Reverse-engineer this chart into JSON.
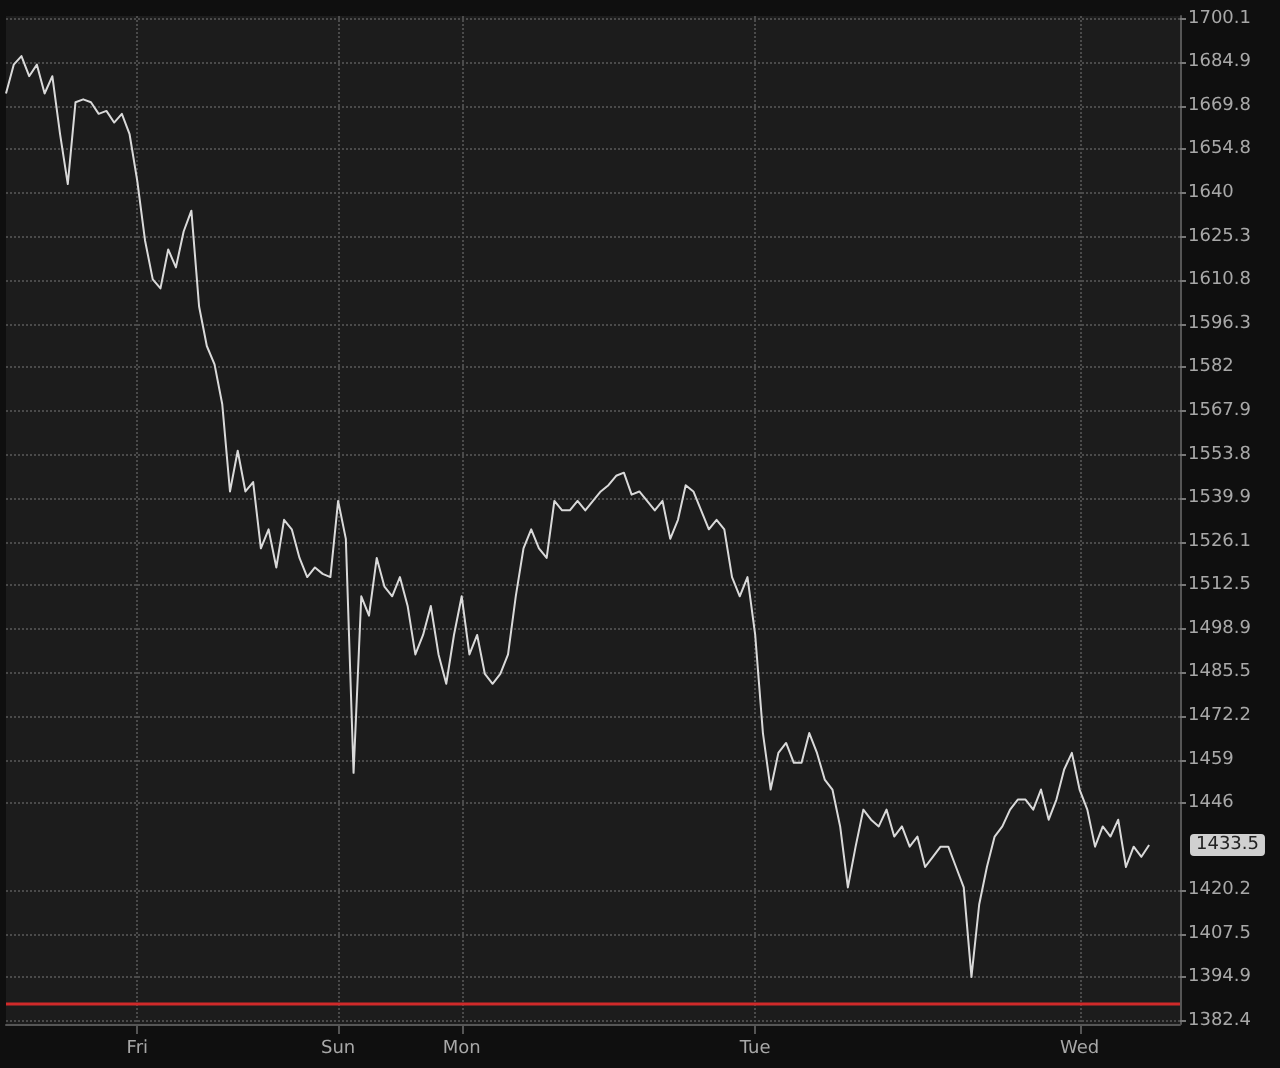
{
  "chart_data": {
    "type": "line",
    "log": true,
    "grid": true,
    "categories": [
      null,
      null,
      null,
      null,
      null,
      null,
      null,
      null,
      null,
      null,
      null,
      null,
      null,
      null,
      null,
      null,
      null,
      "Fri",
      null,
      null,
      null,
      null,
      null,
      null,
      null,
      null,
      null,
      null,
      null,
      null,
      null,
      null,
      null,
      null,
      null,
      null,
      null,
      null,
      null,
      null,
      null,
      null,
      null,
      "Sun",
      null,
      null,
      null,
      null,
      null,
      null,
      null,
      null,
      null,
      null,
      null,
      null,
      null,
      null,
      null,
      "Mon",
      null,
      null,
      null,
      null,
      null,
      null,
      null,
      null,
      null,
      null,
      null,
      null,
      null,
      null,
      null,
      null,
      null,
      null,
      null,
      null,
      null,
      null,
      null,
      null,
      null,
      null,
      null,
      null,
      null,
      null,
      null,
      null,
      null,
      null,
      null,
      null,
      null,
      "Tue",
      null,
      null,
      null,
      null,
      null,
      null,
      null,
      null,
      null,
      null,
      null,
      null,
      null,
      null,
      null,
      null,
      null,
      null,
      null,
      null,
      null,
      null,
      null,
      null,
      null,
      null,
      null,
      null,
      null,
      null,
      null,
      null,
      null,
      null,
      null,
      null,
      null,
      null,
      null,
      null,
      null,
      "Wed",
      null,
      null,
      null,
      null,
      null,
      null,
      null,
      null,
      null,
      null,
      null,
      null,
      null
    ],
    "series": [
      {
        "color": "#d9d9d9",
        "values": [
          1674,
          1684,
          1687,
          1680,
          1684,
          1674,
          1680,
          1660,
          1643,
          1671,
          1672,
          1671,
          1667,
          1668,
          1664,
          1667,
          1660,
          1644,
          1624,
          1611,
          1608,
          1621,
          1615,
          1627,
          1634,
          1602,
          1589,
          1583,
          1570,
          1542,
          1555,
          1542,
          1545,
          1524,
          1530,
          1518,
          1533,
          1530,
          1521,
          1515,
          1518,
          1516,
          1515,
          1539,
          1527,
          1455,
          1509,
          1503,
          1521,
          1512,
          1509,
          1515,
          1506,
          1491,
          1497,
          1506,
          1491,
          1482,
          1497,
          1509,
          1491,
          1497,
          1485,
          1482,
          1485,
          1491,
          1509,
          1524,
          1530,
          1524,
          1521,
          1539,
          1536,
          1536,
          1539,
          1536,
          1539,
          1542,
          1544,
          1547,
          1548,
          1541,
          1542,
          1539,
          1536,
          1539,
          1527,
          1533,
          1544,
          1542,
          1536,
          1530,
          1533,
          1530,
          1515,
          1509,
          1515,
          1497,
          1467,
          1450,
          1461,
          1464,
          1458,
          1458,
          1467,
          1461,
          1453,
          1450,
          1439,
          1421,
          1433,
          1444,
          1441,
          1439,
          1444,
          1436,
          1439,
          1433,
          1436,
          1427,
          1430,
          1433,
          1433,
          1427,
          1421,
          1395,
          1416,
          1427,
          1436,
          1439,
          1444,
          1447,
          1447,
          1444,
          1450,
          1441,
          1447,
          1456,
          1461,
          1450,
          1444,
          1433,
          1439,
          1436,
          1441,
          1427,
          1433,
          1430,
          1433.5,
          null,
          null,
          null,
          null
        ]
      }
    ],
    "ylim": [
      1381.5,
      1701
    ],
    "yticks": [
      1382.4,
      1394.9,
      1407.5,
      1420.2,
      1446,
      1459,
      1472.2,
      1485.5,
      1498.9,
      1512.5,
      1526.1,
      1539.9,
      1553.8,
      1567.9,
      1582,
      1596.3,
      1610.8,
      1625.3,
      1640,
      1654.8,
      1669.8,
      1684.9,
      1700.1
    ],
    "ref_lines": [
      {
        "axis": "y",
        "value": 1387.4,
        "color": "#d02a2a"
      }
    ],
    "annotations": [
      "1433.5"
    ]
  }
}
